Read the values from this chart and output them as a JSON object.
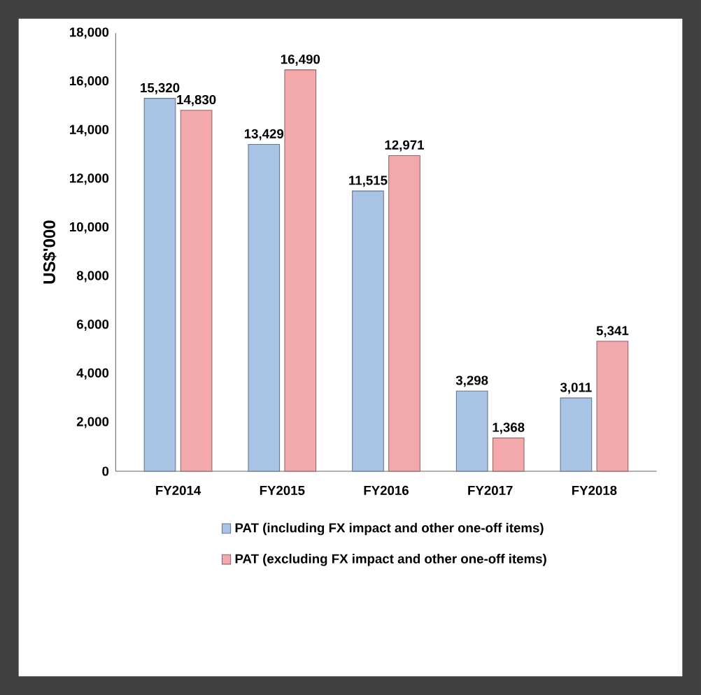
{
  "chart_data": {
    "type": "bar",
    "categories": [
      "FY2014",
      "FY2015",
      "FY2016",
      "FY2017",
      "FY2018"
    ],
    "series": [
      {
        "name": "PAT (including FX impact and other one-off items)",
        "color": "#a9c3e6",
        "values": [
          15320,
          13429,
          11515,
          3298,
          3011
        ],
        "value_labels": [
          "15,320",
          "13,429",
          "11,515",
          "3,298",
          "3,011"
        ]
      },
      {
        "name": "PAT (excluding FX impact and other one-off items)",
        "color": "#f3a9ab",
        "values": [
          14830,
          16490,
          12971,
          1368,
          5341
        ],
        "value_labels": [
          "14,830",
          "16,490",
          "12,971",
          "1,368",
          "5,341"
        ]
      }
    ],
    "ylabel": "US$'000",
    "ylim": [
      0,
      18000
    ],
    "yticks": [
      0,
      {
        "value": 2000,
        "label": "2,000"
      },
      {
        "value": 4000,
        "label": "4,000"
      },
      {
        "value": 6000,
        "label": "6,000"
      },
      {
        "value": 8000,
        "label": "8,000"
      },
      {
        "value": 10000,
        "label": "10,000"
      },
      {
        "value": 12000,
        "label": "12,000"
      },
      {
        "value": 14000,
        "label": "14,000"
      },
      {
        "value": 16000,
        "label": "16,000"
      },
      {
        "value": 18000,
        "label": "18,000"
      }
    ],
    "grid": false,
    "legend": "bottom"
  }
}
